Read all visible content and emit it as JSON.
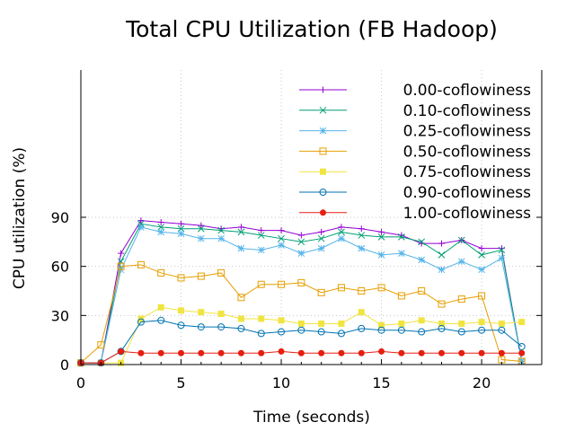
{
  "chart_data": {
    "type": "line",
    "title": "Total CPU Utilization (FB Hadoop)",
    "xlabel": "Time (seconds)",
    "ylabel": "CPU utilization (%)",
    "xlim": [
      0,
      23
    ],
    "ylim": [
      0,
      180
    ],
    "x_ticks": [
      0,
      5,
      10,
      15,
      20
    ],
    "y_ticks": [
      0,
      30,
      60,
      90
    ],
    "grid": true,
    "legend_position": "top-right",
    "x": [
      0,
      1,
      2,
      3,
      4,
      5,
      6,
      7,
      8,
      9,
      10,
      11,
      12,
      13,
      14,
      15,
      16,
      17,
      18,
      19,
      20,
      21,
      22
    ],
    "series": [
      {
        "name": "0.00-coflowiness",
        "color": "#9400d3",
        "marker": "plus",
        "values": [
          1,
          1,
          68,
          88,
          87,
          86,
          85,
          83,
          84,
          82,
          82,
          79,
          81,
          84,
          83,
          81,
          79,
          74,
          74,
          76,
          71,
          71,
          2
        ]
      },
      {
        "name": "0.10-coflowiness",
        "color": "#009e73",
        "marker": "cross",
        "values": [
          1,
          1,
          63,
          86,
          84,
          83,
          83,
          82,
          81,
          79,
          77,
          75,
          77,
          81,
          79,
          78,
          78,
          75,
          67,
          76,
          67,
          70,
          2
        ]
      },
      {
        "name": "0.25-coflowiness",
        "color": "#56b4e9",
        "marker": "asterisk",
        "values": [
          1,
          1,
          58,
          84,
          81,
          80,
          77,
          77,
          71,
          70,
          73,
          68,
          71,
          77,
          71,
          67,
          68,
          64,
          58,
          63,
          58,
          65,
          2
        ]
      },
      {
        "name": "0.50-coflowiness",
        "color": "#e69f00",
        "marker": "open-square",
        "values": [
          1,
          12,
          60,
          61,
          56,
          53,
          54,
          56,
          41,
          49,
          49,
          50,
          44,
          47,
          45,
          47,
          42,
          45,
          37,
          40,
          42,
          3,
          2
        ]
      },
      {
        "name": "0.75-coflowiness",
        "color": "#f0e442",
        "marker": "filled-square",
        "values": [
          1,
          1,
          1,
          28,
          35,
          33,
          32,
          31,
          28,
          28,
          27,
          25,
          25,
          25,
          32,
          24,
          25,
          27,
          25,
          25,
          26,
          25,
          26
        ]
      },
      {
        "name": "0.90-coflowiness",
        "color": "#0072b2",
        "marker": "open-circle",
        "values": [
          1,
          1,
          8,
          26,
          27,
          24,
          23,
          23,
          22,
          19,
          20,
          21,
          20,
          19,
          22,
          21,
          21,
          20,
          22,
          20,
          21,
          21,
          11
        ]
      },
      {
        "name": "1.00-coflowiness",
        "color": "#e51e10",
        "marker": "filled-circle",
        "values": [
          1,
          1,
          8,
          7,
          7,
          7,
          7,
          7,
          7,
          7,
          8,
          7,
          7,
          7,
          7,
          8,
          7,
          7,
          7,
          7,
          7,
          7,
          7
        ]
      }
    ]
  }
}
